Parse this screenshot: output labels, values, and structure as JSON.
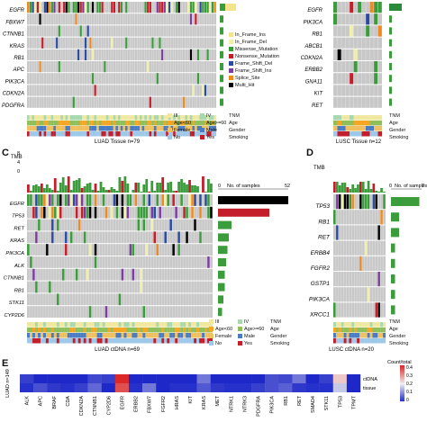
{
  "colors": {
    "in_frame_ins": "#f5e58a",
    "in_frame_del": "#f0f0a8",
    "missense": "#3a9c3a",
    "nonsense": "#c41e2a",
    "frame_shift_del": "#2b4aa3",
    "frame_shift_ins": "#7b3ea0",
    "splice_site": "#f08a1e",
    "multi_hit": "#000000",
    "grey": "#c8c8c8"
  },
  "panels": {
    "A": {
      "genes": [
        "EGFR",
        "FBXW7",
        "CTNNB1",
        "KRAS",
        "RB1",
        "APC",
        "PIK3CA",
        "CDKN2A",
        "PDGFRA"
      ],
      "caption": "LUAD  Tissue n=79",
      "clinical": [
        "TNM",
        "Age",
        "Gender",
        "Smoking"
      ]
    },
    "B": {
      "genes": [
        "EGFR",
        "PIK3CA",
        "RB1",
        "ABCB1",
        "CDKN2A",
        "ERBB2",
        "GNA11",
        "KIT",
        "RET"
      ],
      "caption": "LUSC  Tissue n=12",
      "clinical": [
        "TNM",
        "Age",
        "Gender",
        "Smoking"
      ]
    },
    "C": {
      "label": "C",
      "tmb_label": "TMB",
      "tmb_ticks": [
        "8",
        "4",
        "0"
      ],
      "genes": [
        "EGFR",
        "TP53",
        "RET",
        "KRAS",
        "PIK3CA",
        "ALK",
        "CTNNB1",
        "RB1",
        "STK11",
        "CYP2D6"
      ],
      "caption": "LUAD  ctDNA n=69",
      "bar_axis": {
        "title": "No. of samples",
        "min": "0",
        "max": "52"
      }
    },
    "D": {
      "label": "D",
      "tmb_label": "TMB",
      "genes": [
        "TP53",
        "RB1",
        "RET",
        "ERBB4",
        "FGFR2",
        "GSTP1",
        "PIK3CA",
        "XRCC1"
      ],
      "caption": "LUSC  ctDNA n=20",
      "bar_axis": {
        "title": "No. of samples",
        "min": "0",
        "max": "7"
      }
    },
    "E": {
      "label": "E",
      "ylabel": "LUAD n=149",
      "rows": [
        "ctDNA",
        "tissue"
      ],
      "genes": [
        "ALK",
        "APC",
        "BRAF",
        "CDA",
        "CDKN2A",
        "CTNNB1",
        "CYP2D6",
        "EGFR",
        "ERBB2",
        "FBXW7",
        "FGFR2",
        "HRAS",
        "KIT",
        "KRAS",
        "MET",
        "NTRK1",
        "NTRK3",
        "PDGFRA",
        "PIK3CA",
        "RB1",
        "RET",
        "SMAD4",
        "STK11",
        "TP53",
        "TPMT"
      ],
      "ctdna": [
        0.03,
        0.0,
        0.0,
        0.0,
        0.0,
        0.04,
        0.03,
        0.5,
        0.0,
        0.0,
        0.0,
        0.0,
        0.0,
        0.1,
        0.0,
        0.0,
        0.0,
        0.0,
        0.05,
        0.04,
        0.1,
        0.0,
        0.03,
        0.3,
        0.0
      ],
      "tissue": [
        0.01,
        0.05,
        0.02,
        0.01,
        0.03,
        0.08,
        0.0,
        0.45,
        0.01,
        0.1,
        0.0,
        0.01,
        0.01,
        0.06,
        0.02,
        0.01,
        0.01,
        0.03,
        0.05,
        0.07,
        0.02,
        0.01,
        0.01,
        0.2,
        0.0
      ],
      "scale_title": "Count/total",
      "scale_ticks": [
        "0.4",
        "0.3",
        "0.2",
        "0.1",
        "0"
      ]
    }
  },
  "legend_mutations": [
    "In_Frame_Ins",
    "In_Frame_Del",
    "Missense_Mutation",
    "Nonsense_Mutation",
    "Frame_Shift_Del",
    "Frame_Shift_Ins",
    "Splice_Site",
    "Multi_Hit"
  ],
  "legend_clinical": {
    "tnm": [
      "III",
      "IV"
    ],
    "age": [
      "Age<60",
      "Age>=60"
    ],
    "gender": [
      "Female",
      "Male"
    ],
    "smoking": [
      "No",
      "Yes"
    ],
    "rows": [
      "TNM",
      "Age",
      "Gender",
      "Smoking"
    ]
  }
}
